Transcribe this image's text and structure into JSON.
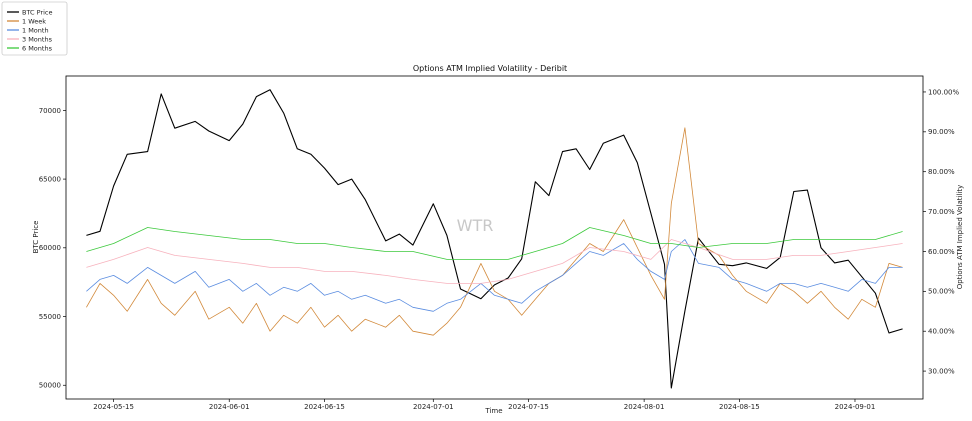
{
  "chart_data": {
    "type": "line",
    "title": "Options ATM Implied Volatility - Deribit",
    "xlabel": "Time",
    "ylabel_left": "BTC Price",
    "ylabel_right": "Options ATM Implied Volatility",
    "watermark": "WTR",
    "x_range": [
      "2024-05-08",
      "2024-09-11"
    ],
    "ylim_left": [
      49000,
      72500
    ],
    "ylim_right": [
      0.23,
      1.04
    ],
    "x_ticks": [
      "2024-05-15",
      "2024-06-01",
      "2024-06-15",
      "2024-07-01",
      "2024-07-15",
      "2024-08-01",
      "2024-08-15",
      "2024-09-01"
    ],
    "y_ticks_left": [
      "50000",
      "55000",
      "60000",
      "65000",
      "70000"
    ],
    "y_ticks_right": [
      "30.00%",
      "40.00%",
      "50.00%",
      "60.00%",
      "70.00%",
      "80.00%",
      "90.00%",
      "100.00%"
    ],
    "legend_position": "top-left",
    "grid": false,
    "series": [
      {
        "name": "BTC Price",
        "axis": "left",
        "color": "#000000",
        "x": [
          "2024-05-11",
          "2024-05-13",
          "2024-05-15",
          "2024-05-17",
          "2024-05-20",
          "2024-05-22",
          "2024-05-24",
          "2024-05-27",
          "2024-05-29",
          "2024-06-01",
          "2024-06-03",
          "2024-06-05",
          "2024-06-07",
          "2024-06-09",
          "2024-06-11",
          "2024-06-13",
          "2024-06-15",
          "2024-06-17",
          "2024-06-19",
          "2024-06-21",
          "2024-06-24",
          "2024-06-26",
          "2024-06-28",
          "2024-07-01",
          "2024-07-03",
          "2024-07-05",
          "2024-07-08",
          "2024-07-10",
          "2024-07-12",
          "2024-07-14",
          "2024-07-16",
          "2024-07-18",
          "2024-07-20",
          "2024-07-22",
          "2024-07-24",
          "2024-07-26",
          "2024-07-29",
          "2024-07-31",
          "2024-08-02",
          "2024-08-04",
          "2024-08-05",
          "2024-08-07",
          "2024-08-09",
          "2024-08-12",
          "2024-08-14",
          "2024-08-16",
          "2024-08-19",
          "2024-08-21",
          "2024-08-23",
          "2024-08-25",
          "2024-08-27",
          "2024-08-29",
          "2024-08-31",
          "2024-09-02",
          "2024-09-04",
          "2024-09-06",
          "2024-09-08"
        ],
        "values": [
          60900,
          61200,
          64500,
          66800,
          67000,
          71200,
          68700,
          69200,
          68500,
          67800,
          69000,
          71000,
          71500,
          69800,
          67200,
          66800,
          65800,
          64600,
          65000,
          63500,
          60500,
          61000,
          60200,
          63200,
          60900,
          57000,
          56300,
          57300,
          57800,
          59200,
          64800,
          63800,
          67000,
          67200,
          65700,
          67600,
          68200,
          66200,
          62500,
          58800,
          49800,
          55400,
          60700,
          58800,
          58700,
          58900,
          58500,
          59300,
          64100,
          64200,
          60000,
          58900,
          59100,
          57900,
          56700,
          53800,
          54100
        ]
      },
      {
        "name": "1 Week",
        "axis": "right",
        "color": "#d2893a",
        "x": [
          "2024-05-11",
          "2024-05-13",
          "2024-05-15",
          "2024-05-17",
          "2024-05-20",
          "2024-05-22",
          "2024-05-24",
          "2024-05-27",
          "2024-05-29",
          "2024-06-01",
          "2024-06-03",
          "2024-06-05",
          "2024-06-07",
          "2024-06-09",
          "2024-06-11",
          "2024-06-13",
          "2024-06-15",
          "2024-06-17",
          "2024-06-19",
          "2024-06-21",
          "2024-06-24",
          "2024-06-26",
          "2024-06-28",
          "2024-07-01",
          "2024-07-03",
          "2024-07-05",
          "2024-07-08",
          "2024-07-10",
          "2024-07-12",
          "2024-07-14",
          "2024-07-16",
          "2024-07-18",
          "2024-07-20",
          "2024-07-22",
          "2024-07-24",
          "2024-07-26",
          "2024-07-29",
          "2024-07-31",
          "2024-08-02",
          "2024-08-04",
          "2024-08-05",
          "2024-08-07",
          "2024-08-09",
          "2024-08-12",
          "2024-08-14",
          "2024-08-16",
          "2024-08-19",
          "2024-08-21",
          "2024-08-23",
          "2024-08-25",
          "2024-08-27",
          "2024-08-29",
          "2024-08-31",
          "2024-09-02",
          "2024-09-04",
          "2024-09-06",
          "2024-09-08"
        ],
        "values": [
          0.46,
          0.52,
          0.49,
          0.45,
          0.53,
          0.47,
          0.44,
          0.5,
          0.43,
          0.46,
          0.42,
          0.47,
          0.4,
          0.44,
          0.42,
          0.46,
          0.41,
          0.44,
          0.4,
          0.43,
          0.41,
          0.44,
          0.4,
          0.39,
          0.42,
          0.46,
          0.57,
          0.5,
          0.48,
          0.44,
          0.48,
          0.52,
          0.54,
          0.58,
          0.62,
          0.6,
          0.68,
          0.61,
          0.54,
          0.48,
          0.72,
          0.91,
          0.62,
          0.59,
          0.54,
          0.5,
          0.47,
          0.52,
          0.5,
          0.47,
          0.5,
          0.46,
          0.43,
          0.48,
          0.46,
          0.57,
          0.56
        ]
      },
      {
        "name": "1 Month",
        "axis": "right",
        "color": "#5b8de0",
        "x": [
          "2024-05-11",
          "2024-05-13",
          "2024-05-15",
          "2024-05-17",
          "2024-05-20",
          "2024-05-22",
          "2024-05-24",
          "2024-05-27",
          "2024-05-29",
          "2024-06-01",
          "2024-06-03",
          "2024-06-05",
          "2024-06-07",
          "2024-06-09",
          "2024-06-11",
          "2024-06-13",
          "2024-06-15",
          "2024-06-17",
          "2024-06-19",
          "2024-06-21",
          "2024-06-24",
          "2024-06-26",
          "2024-06-28",
          "2024-07-01",
          "2024-07-03",
          "2024-07-05",
          "2024-07-08",
          "2024-07-10",
          "2024-07-12",
          "2024-07-14",
          "2024-07-16",
          "2024-07-18",
          "2024-07-20",
          "2024-07-22",
          "2024-07-24",
          "2024-07-26",
          "2024-07-29",
          "2024-07-31",
          "2024-08-02",
          "2024-08-04",
          "2024-08-05",
          "2024-08-07",
          "2024-08-09",
          "2024-08-12",
          "2024-08-14",
          "2024-08-16",
          "2024-08-19",
          "2024-08-21",
          "2024-08-23",
          "2024-08-25",
          "2024-08-27",
          "2024-08-29",
          "2024-08-31",
          "2024-09-02",
          "2024-09-04",
          "2024-09-06",
          "2024-09-08"
        ],
        "values": [
          0.5,
          0.53,
          0.54,
          0.52,
          0.56,
          0.54,
          0.52,
          0.55,
          0.51,
          0.53,
          0.5,
          0.52,
          0.49,
          0.51,
          0.5,
          0.52,
          0.49,
          0.5,
          0.48,
          0.49,
          0.47,
          0.48,
          0.46,
          0.45,
          0.47,
          0.48,
          0.52,
          0.49,
          0.48,
          0.47,
          0.5,
          0.52,
          0.54,
          0.57,
          0.6,
          0.59,
          0.62,
          0.58,
          0.55,
          0.53,
          0.6,
          0.63,
          0.57,
          0.56,
          0.53,
          0.52,
          0.5,
          0.52,
          0.52,
          0.51,
          0.52,
          0.51,
          0.5,
          0.53,
          0.52,
          0.56,
          0.56
        ]
      },
      {
        "name": "3 Months",
        "axis": "right",
        "color": "#f7b2bd",
        "x": [
          "2024-05-11",
          "2024-05-15",
          "2024-05-20",
          "2024-05-24",
          "2024-05-29",
          "2024-06-03",
          "2024-06-07",
          "2024-06-11",
          "2024-06-15",
          "2024-06-19",
          "2024-06-24",
          "2024-06-28",
          "2024-07-03",
          "2024-07-08",
          "2024-07-12",
          "2024-07-16",
          "2024-07-20",
          "2024-07-24",
          "2024-07-29",
          "2024-08-02",
          "2024-08-05",
          "2024-08-09",
          "2024-08-14",
          "2024-08-19",
          "2024-08-23",
          "2024-08-27",
          "2024-08-31",
          "2024-09-04",
          "2024-09-08"
        ],
        "values": [
          0.56,
          0.58,
          0.61,
          0.59,
          0.58,
          0.57,
          0.56,
          0.56,
          0.55,
          0.55,
          0.54,
          0.53,
          0.52,
          0.52,
          0.53,
          0.55,
          0.57,
          0.61,
          0.6,
          0.58,
          0.63,
          0.61,
          0.58,
          0.58,
          0.59,
          0.59,
          0.6,
          0.61,
          0.62
        ]
      },
      {
        "name": "6 Months",
        "axis": "right",
        "color": "#3cc93c",
        "x": [
          "2024-05-11",
          "2024-05-15",
          "2024-05-20",
          "2024-05-24",
          "2024-05-29",
          "2024-06-03",
          "2024-06-07",
          "2024-06-11",
          "2024-06-15",
          "2024-06-19",
          "2024-06-24",
          "2024-06-28",
          "2024-07-03",
          "2024-07-08",
          "2024-07-12",
          "2024-07-16",
          "2024-07-20",
          "2024-07-24",
          "2024-07-29",
          "2024-08-02",
          "2024-08-05",
          "2024-08-09",
          "2024-08-14",
          "2024-08-19",
          "2024-08-23",
          "2024-08-27",
          "2024-08-31",
          "2024-09-04",
          "2024-09-08"
        ],
        "values": [
          0.6,
          0.62,
          0.66,
          0.65,
          0.64,
          0.63,
          0.63,
          0.62,
          0.62,
          0.61,
          0.6,
          0.6,
          0.58,
          0.58,
          0.58,
          0.6,
          0.62,
          0.66,
          0.64,
          0.62,
          0.62,
          0.61,
          0.62,
          0.62,
          0.63,
          0.63,
          0.63,
          0.63,
          0.65
        ]
      }
    ]
  }
}
